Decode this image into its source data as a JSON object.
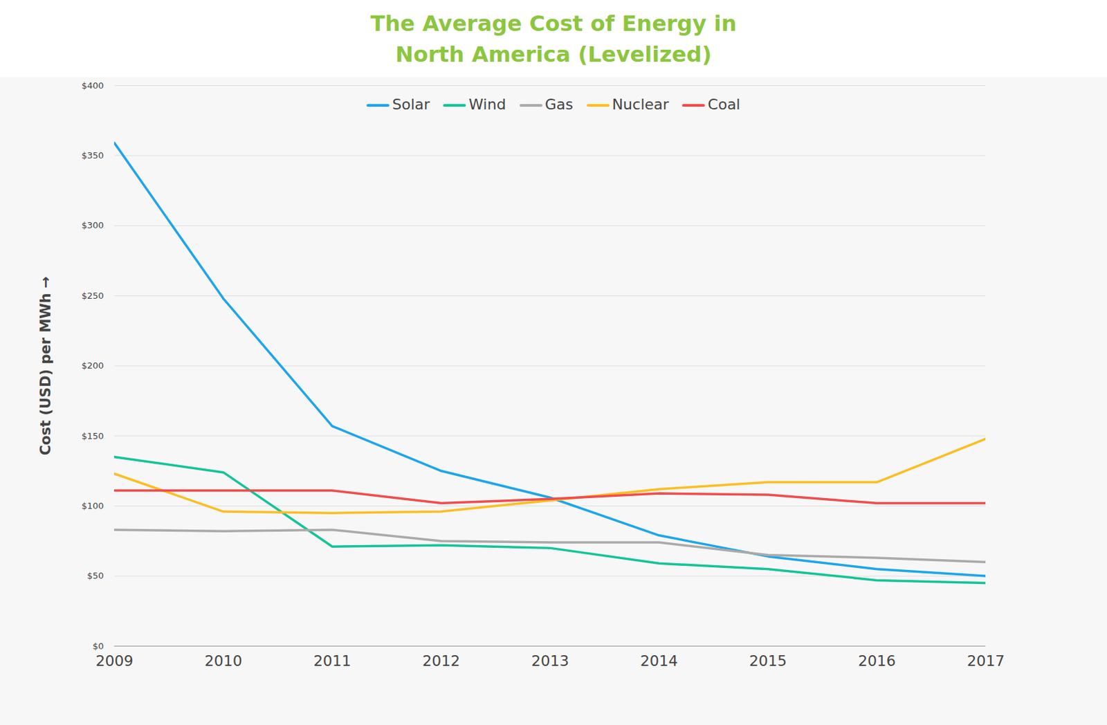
{
  "chart_data": {
    "type": "line",
    "title": "The Average Cost of Energy in North America (Levelized)",
    "y_label": "Cost (USD) per MWh",
    "x": [
      2009,
      2010,
      2011,
      2012,
      2013,
      2014,
      2015,
      2016,
      2017
    ],
    "xlim": [
      2009,
      2017
    ],
    "xticks": [
      2009,
      2010,
      2011,
      2012,
      2013,
      2014,
      2015,
      2016,
      2017
    ],
    "ylim": [
      0,
      400
    ],
    "yticks": [
      {
        "value": 0,
        "label": "$0"
      },
      {
        "value": 50,
        "label": "$50"
      },
      {
        "value": 100,
        "label": "$100"
      },
      {
        "value": 150,
        "label": "$150"
      },
      {
        "value": 200,
        "label": "$200"
      },
      {
        "value": 250,
        "label": "$250"
      },
      {
        "value": 300,
        "label": "$300"
      },
      {
        "value": 350,
        "label": "$350"
      },
      {
        "value": 400,
        "label": "$400"
      }
    ],
    "grid": true,
    "legend": "top",
    "series": [
      {
        "name": "Solar",
        "color": "#1ea5e9",
        "values": [
          359,
          248,
          157,
          125,
          106,
          79,
          64,
          55,
          50
        ]
      },
      {
        "name": "Wind",
        "color": "#14c497",
        "values": [
          135,
          124,
          71,
          72,
          70,
          59,
          55,
          47,
          45
        ]
      },
      {
        "name": "Gas",
        "color": "#aaaaaa",
        "values": [
          83,
          82,
          83,
          75,
          74,
          74,
          65,
          63,
          60
        ]
      },
      {
        "name": "Nuclear",
        "color": "#fbbf24",
        "values": [
          123,
          96,
          95,
          96,
          104,
          112,
          117,
          117,
          148
        ]
      },
      {
        "name": "Coal",
        "color": "#f04d4d",
        "values": [
          111,
          111,
          111,
          102,
          105,
          109,
          108,
          102,
          102
        ]
      }
    ]
  }
}
